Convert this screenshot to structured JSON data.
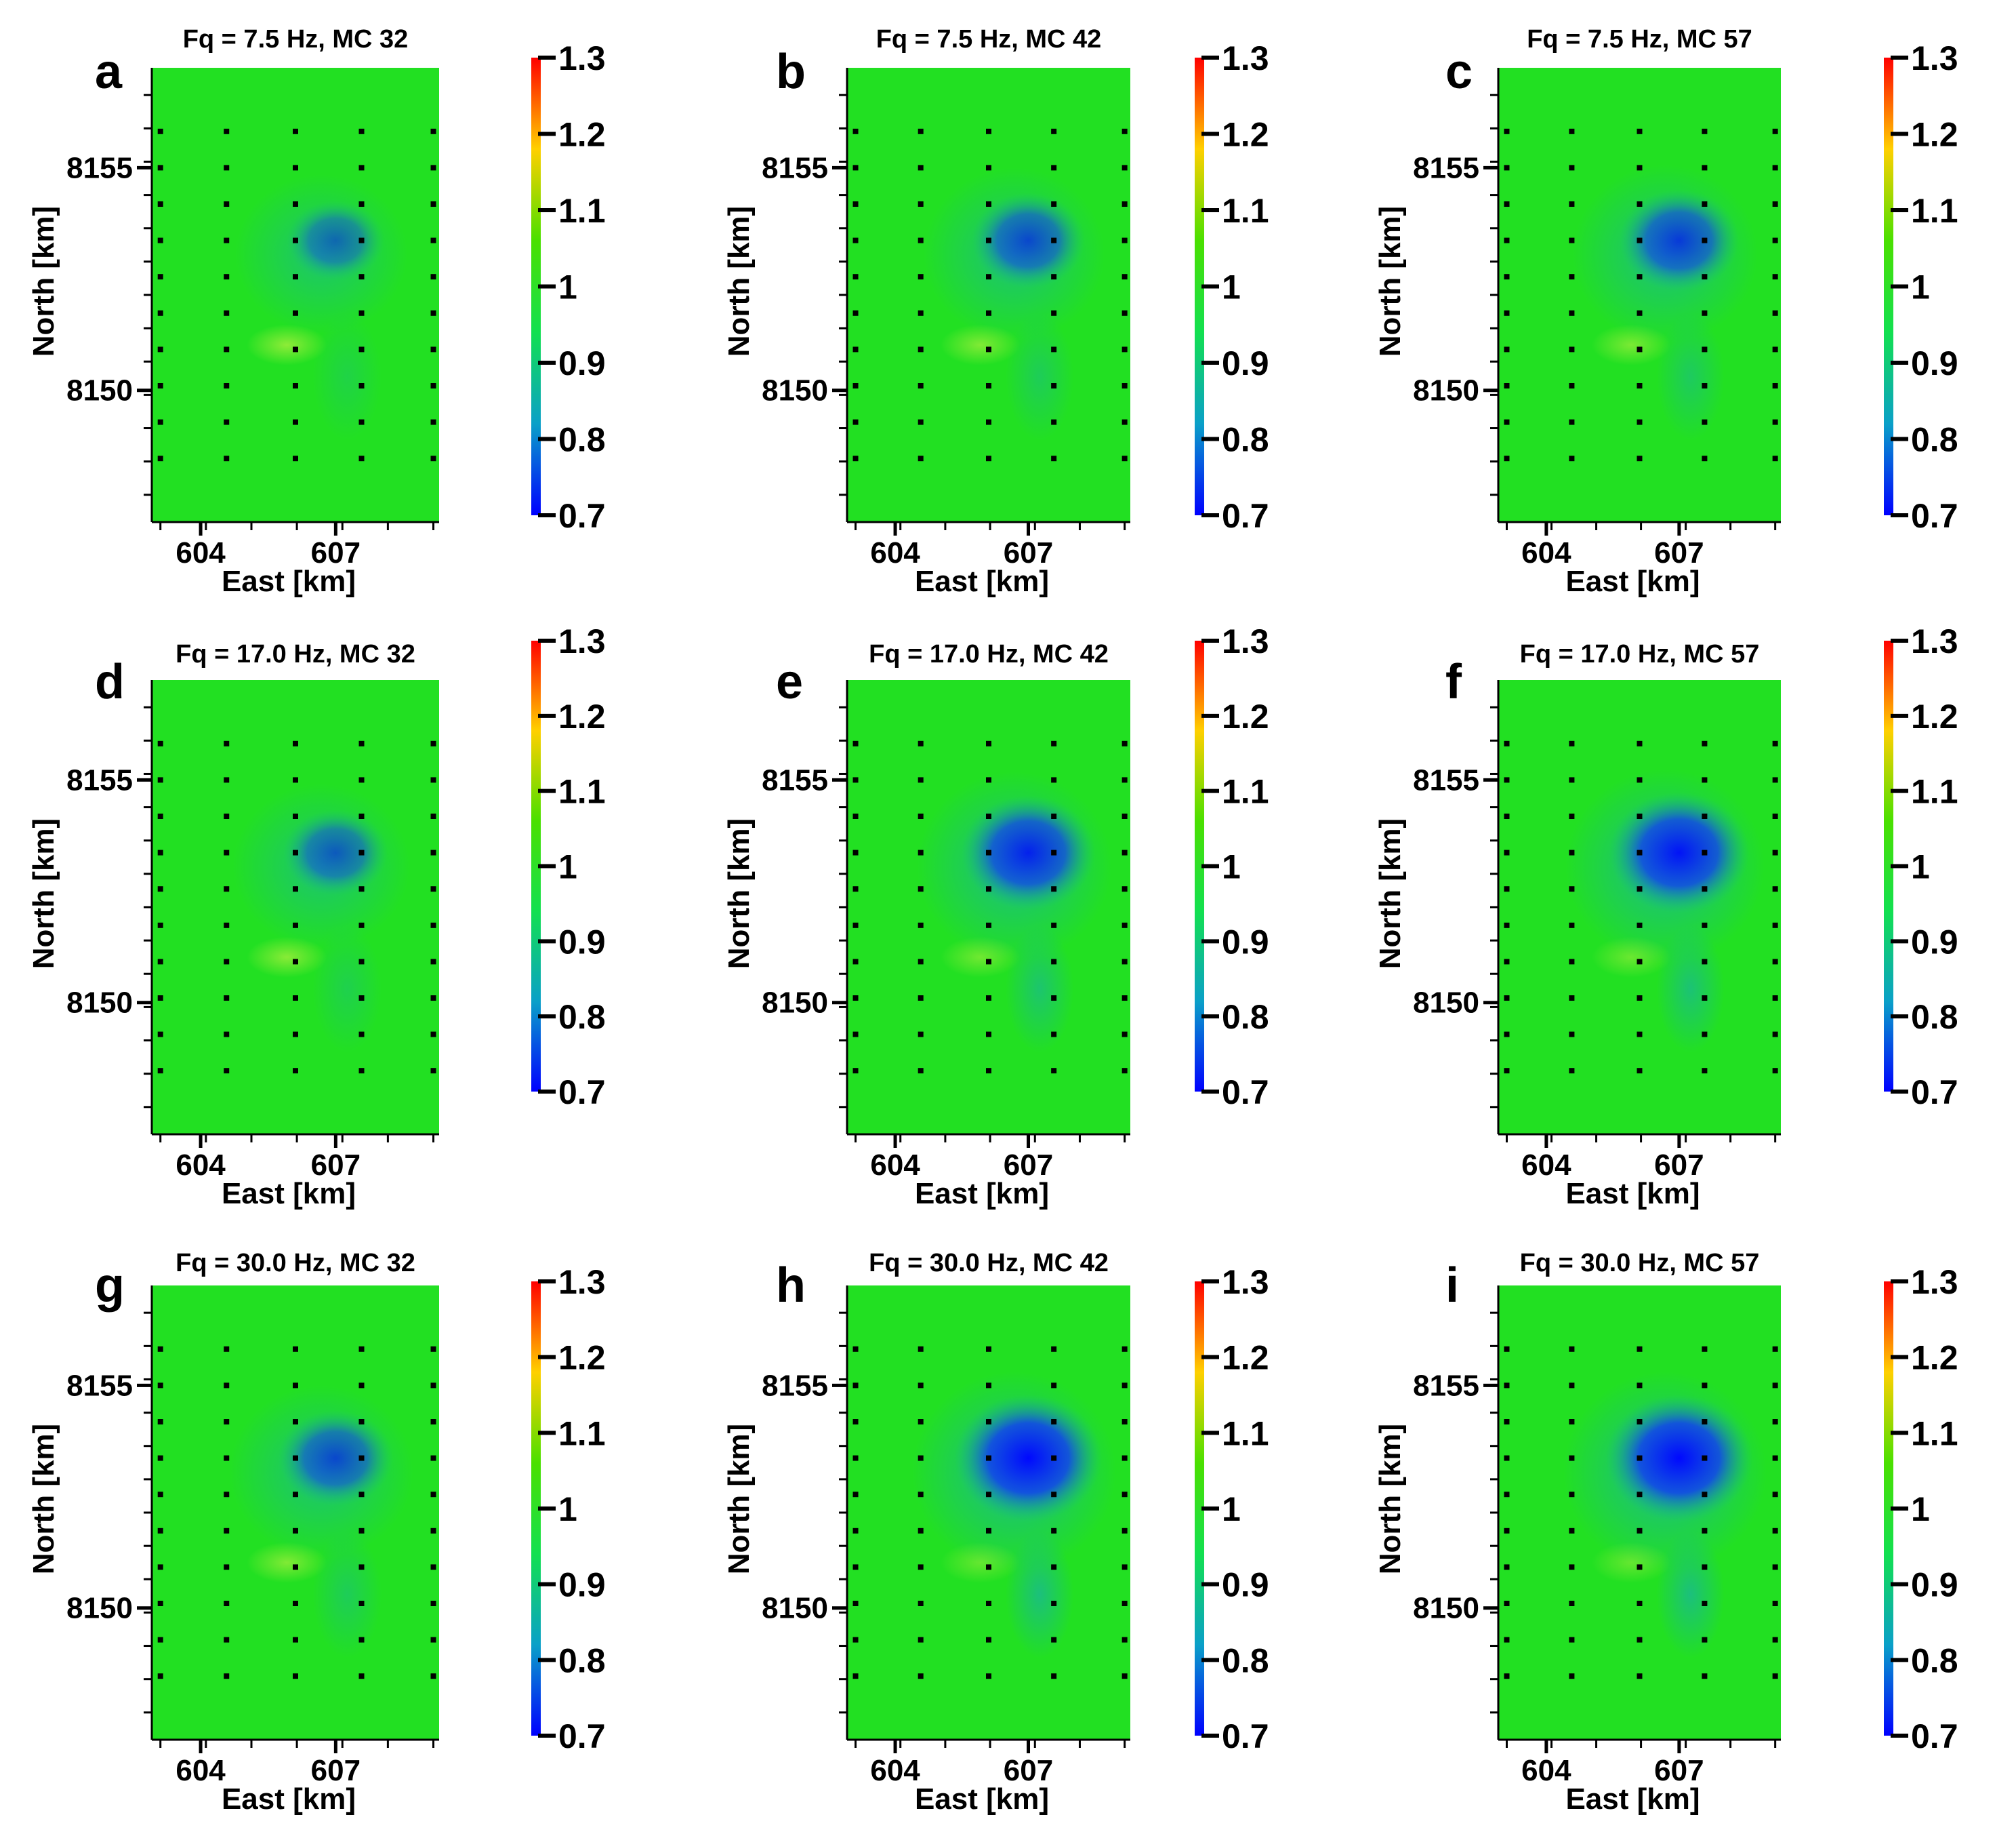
{
  "colorbar": {
    "ticks": [
      "1.3",
      "1.2",
      "1.1",
      "1",
      "0.9",
      "0.8",
      "0.7"
    ],
    "min": 0.7,
    "max": 1.3,
    "colors": [
      "#0000ff",
      "#0aa0c8",
      "#12e050",
      "#4ae000",
      "#ffd000",
      "#ff0000"
    ]
  },
  "axes": {
    "xlabel": "East [km]",
    "ylabel": "North [km]",
    "xticks": [
      "604",
      "607"
    ],
    "yticks": [
      "8155",
      "8150"
    ]
  },
  "chart_data": [
    {
      "letter": "a",
      "title": "Fq = 7.5 Hz, MC 32",
      "type": "heatmap",
      "frequency_hz": 7.5,
      "mc": 32,
      "min_value": 0.85
    },
    {
      "letter": "b",
      "title": "Fq = 7.5 Hz, MC 42",
      "type": "heatmap",
      "frequency_hz": 7.5,
      "mc": 42,
      "min_value": 0.8
    },
    {
      "letter": "c",
      "title": "Fq = 7.5 Hz, MC 57",
      "type": "heatmap",
      "frequency_hz": 7.5,
      "mc": 57,
      "min_value": 0.78
    },
    {
      "letter": "d",
      "title": "Fq = 17.0 Hz, MC 32",
      "type": "heatmap",
      "frequency_hz": 17.0,
      "mc": 32,
      "min_value": 0.83
    },
    {
      "letter": "e",
      "title": "Fq = 17.0 Hz, MC 42",
      "type": "heatmap",
      "frequency_hz": 17.0,
      "mc": 42,
      "min_value": 0.74
    },
    {
      "letter": "f",
      "title": "Fq = 17.0 Hz, MC 57",
      "type": "heatmap",
      "frequency_hz": 17.0,
      "mc": 57,
      "min_value": 0.72
    },
    {
      "letter": "g",
      "title": "Fq = 30.0 Hz, MC 32",
      "type": "heatmap",
      "frequency_hz": 30.0,
      "mc": 32,
      "min_value": 0.8
    },
    {
      "letter": "h",
      "title": "Fq = 30.0 Hz, MC 42",
      "type": "heatmap",
      "frequency_hz": 30.0,
      "mc": 42,
      "min_value": 0.7
    },
    {
      "letter": "i",
      "title": "Fq = 30.0 Hz, MC 57",
      "type": "heatmap",
      "frequency_hz": 30.0,
      "mc": 57,
      "min_value": 0.7
    }
  ]
}
